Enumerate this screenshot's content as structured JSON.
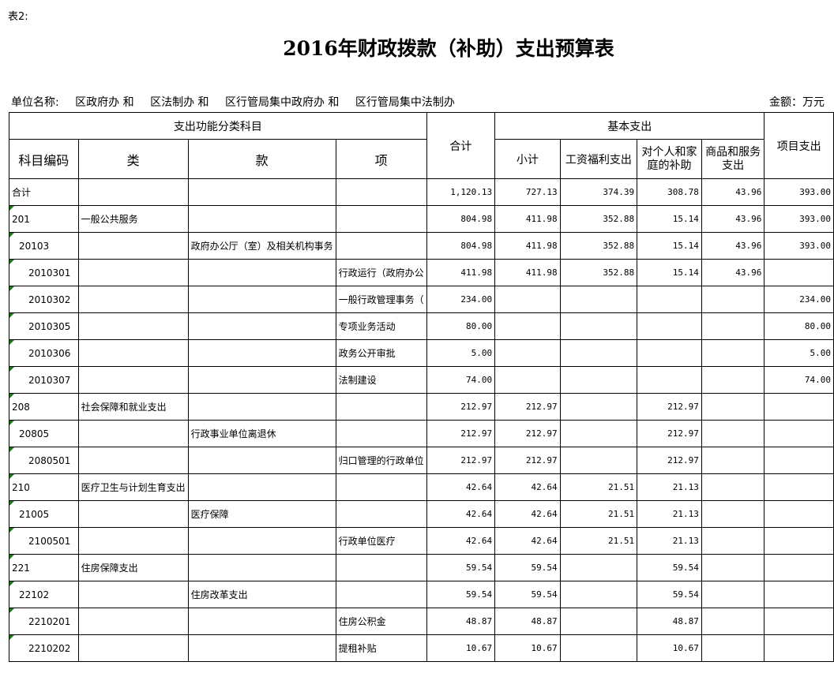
{
  "note": "表2:",
  "title": "2016年财政拨款（补助）支出预算表",
  "unit": {
    "label": "单位名称:",
    "names": [
      "区政府办 和",
      "区法制办 和",
      "区行管局集中政府办 和",
      "区行管局集中法制办"
    ]
  },
  "amount_unit": "金额：万元",
  "headers": {
    "func": "支出功能分类科目",
    "code": "科目编码",
    "lei": "类",
    "kuan": "款",
    "xiang": "项",
    "total": "合计",
    "basic": "基本支出",
    "subtotal": "小计",
    "wages": "工资福利支出",
    "personal": "对个人和家庭的补助",
    "goods": "商品和服务支出",
    "project": "项目支出"
  },
  "rows": [
    {
      "code": "合计",
      "indent": 0,
      "lei": "",
      "kuan": "",
      "xiang": "",
      "total": "1,120.13",
      "subtotal": "727.13",
      "wages": "374.39",
      "personal": "308.78",
      "goods": "43.96",
      "project": "393.00"
    },
    {
      "code": "201",
      "indent": 0,
      "lei": "一般公共服务",
      "kuan": "",
      "xiang": "",
      "total": "804.98",
      "subtotal": "411.98",
      "wages": "352.88",
      "personal": "15.14",
      "goods": "43.96",
      "project": "393.00"
    },
    {
      "code": "20103",
      "indent": 1,
      "lei": "",
      "kuan": "政府办公厅（室）及相关机构事务",
      "xiang": "",
      "total": "804.98",
      "subtotal": "411.98",
      "wages": "352.88",
      "personal": "15.14",
      "goods": "43.96",
      "project": "393.00"
    },
    {
      "code": "2010301",
      "indent": 2,
      "lei": "",
      "kuan": "",
      "xiang": "行政运行（政府办公",
      "total": "411.98",
      "subtotal": "411.98",
      "wages": "352.88",
      "personal": "15.14",
      "goods": "43.96",
      "project": ""
    },
    {
      "code": "2010302",
      "indent": 2,
      "lei": "",
      "kuan": "",
      "xiang": "一般行政管理事务（",
      "total": "234.00",
      "subtotal": "",
      "wages": "",
      "personal": "",
      "goods": "",
      "project": "234.00"
    },
    {
      "code": "2010305",
      "indent": 2,
      "lei": "",
      "kuan": "",
      "xiang": "专项业务活动",
      "total": "80.00",
      "subtotal": "",
      "wages": "",
      "personal": "",
      "goods": "",
      "project": "80.00"
    },
    {
      "code": "2010306",
      "indent": 2,
      "lei": "",
      "kuan": "",
      "xiang": "政务公开审批",
      "total": "5.00",
      "subtotal": "",
      "wages": "",
      "personal": "",
      "goods": "",
      "project": "5.00"
    },
    {
      "code": "2010307",
      "indent": 2,
      "lei": "",
      "kuan": "",
      "xiang": "法制建设",
      "total": "74.00",
      "subtotal": "",
      "wages": "",
      "personal": "",
      "goods": "",
      "project": "74.00"
    },
    {
      "code": "208",
      "indent": 0,
      "lei": "社会保障和就业支出",
      "kuan": "",
      "xiang": "",
      "total": "212.97",
      "subtotal": "212.97",
      "wages": "",
      "personal": "212.97",
      "goods": "",
      "project": ""
    },
    {
      "code": "20805",
      "indent": 1,
      "lei": "",
      "kuan": "行政事业单位离退休",
      "xiang": "",
      "total": "212.97",
      "subtotal": "212.97",
      "wages": "",
      "personal": "212.97",
      "goods": "",
      "project": ""
    },
    {
      "code": "2080501",
      "indent": 2,
      "lei": "",
      "kuan": "",
      "xiang": "归口管理的行政单位",
      "total": "212.97",
      "subtotal": "212.97",
      "wages": "",
      "personal": "212.97",
      "goods": "",
      "project": ""
    },
    {
      "code": "210",
      "indent": 0,
      "lei": "医疗卫生与计划生育支出",
      "kuan": "",
      "xiang": "",
      "total": "42.64",
      "subtotal": "42.64",
      "wages": "21.51",
      "personal": "21.13",
      "goods": "",
      "project": ""
    },
    {
      "code": "21005",
      "indent": 1,
      "lei": "",
      "kuan": "医疗保障",
      "xiang": "",
      "total": "42.64",
      "subtotal": "42.64",
      "wages": "21.51",
      "personal": "21.13",
      "goods": "",
      "project": ""
    },
    {
      "code": "2100501",
      "indent": 2,
      "lei": "",
      "kuan": "",
      "xiang": "行政单位医疗",
      "total": "42.64",
      "subtotal": "42.64",
      "wages": "21.51",
      "personal": "21.13",
      "goods": "",
      "project": ""
    },
    {
      "code": "221",
      "indent": 0,
      "lei": "住房保障支出",
      "kuan": "",
      "xiang": "",
      "total": "59.54",
      "subtotal": "59.54",
      "wages": "",
      "personal": "59.54",
      "goods": "",
      "project": ""
    },
    {
      "code": "22102",
      "indent": 1,
      "lei": "",
      "kuan": "住房改革支出",
      "xiang": "",
      "total": "59.54",
      "subtotal": "59.54",
      "wages": "",
      "personal": "59.54",
      "goods": "",
      "project": ""
    },
    {
      "code": "2210201",
      "indent": 2,
      "lei": "",
      "kuan": "",
      "xiang": "住房公积金",
      "total": "48.87",
      "subtotal": "48.87",
      "wages": "",
      "personal": "48.87",
      "goods": "",
      "project": ""
    },
    {
      "code": "2210202",
      "indent": 2,
      "lei": "",
      "kuan": "",
      "xiang": "提租补贴",
      "total": "10.67",
      "subtotal": "10.67",
      "wages": "",
      "personal": "10.67",
      "goods": "",
      "project": ""
    }
  ]
}
